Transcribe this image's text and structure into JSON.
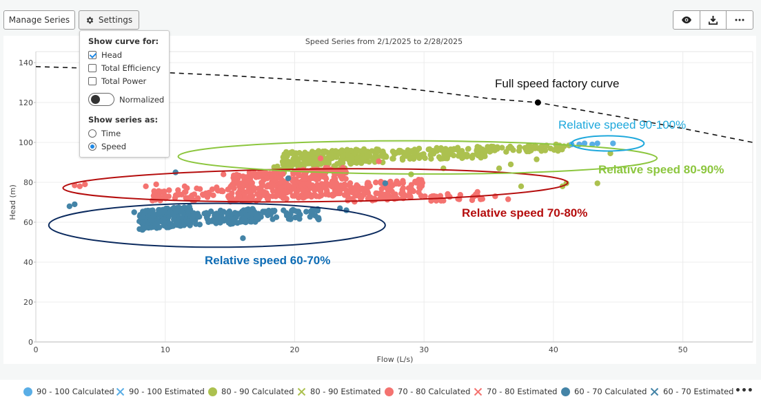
{
  "toolbar": {
    "manage_series_label": "Manage Series",
    "settings_label": "Settings",
    "settings_icon": "gear-icon",
    "right_buttons": [
      {
        "icon": "eye-icon",
        "label": "view"
      },
      {
        "icon": "download-icon",
        "label": "download"
      },
      {
        "icon": "more-icon",
        "label": "more"
      }
    ]
  },
  "settings_dropdown": {
    "curve_heading": "Show curve for:",
    "curve_options": [
      {
        "label": "Head",
        "checked": true
      },
      {
        "label": "Total Efficiency",
        "checked": false
      },
      {
        "label": "Total Power",
        "checked": false
      }
    ],
    "normalized_label": "Normalized",
    "normalized_on": false,
    "series_heading": "Show series as:",
    "series_options": [
      {
        "label": "Time",
        "selected": false
      },
      {
        "label": "Speed",
        "selected": true
      }
    ]
  },
  "annotations": {
    "factory_curve": "Full speed factory curve",
    "speed_90_100": "Relative speed 90-100%",
    "speed_80_90": "Relative speed 80-90%",
    "speed_70_80": "Relative speed 70-80%",
    "speed_60_70": "Relative speed 60-70%"
  },
  "colors": {
    "s90": "#5aaee6",
    "s80": "#acc14f",
    "s70": "#f47370",
    "s60": "#4484a7",
    "ann90": "#1ea8dc",
    "ann80": "#8cc63e",
    "ann70": "#b50d0d",
    "ann60": "#0d6cb5",
    "ellipse60": "#0b2a5e",
    "ellipse70": "#b50d0d",
    "ellipse80": "#8cc63e",
    "ellipse90": "#1ea8dc"
  },
  "chart_data": {
    "type": "scatter",
    "title": "Speed Series from 2/1/2025 to 2/28/2025",
    "xlabel": "Flow (L/s)",
    "ylabel": "Head (m)",
    "xlim": [
      0,
      55.4
    ],
    "ylim": [
      0,
      140
    ],
    "xticks": [
      "0",
      "10",
      "20",
      "30",
      "40",
      "50"
    ],
    "xtick_values": [
      0,
      10,
      20,
      30,
      40,
      50
    ],
    "yticks": [
      "0",
      "20",
      "40",
      "60",
      "80",
      "100",
      "120",
      "140"
    ],
    "ytick_values": [
      0,
      20,
      40,
      60,
      80,
      100,
      120,
      140
    ],
    "grid": true,
    "factory_curve": {
      "name": "Full speed factory curve",
      "x": [
        0,
        5,
        10,
        15,
        20,
        25,
        30,
        35,
        38.8,
        45,
        50,
        55.4
      ],
      "y": [
        138,
        137,
        135,
        133.5,
        131.5,
        129.5,
        126,
        122,
        120,
        113,
        107,
        100
      ],
      "marker_point": {
        "x": 38.8,
        "y": 120
      }
    },
    "series": [
      {
        "name": "90 - 100 Calculated",
        "marker": "dot",
        "points": [
          [
            41.4,
            99
          ],
          [
            42.4,
            99.5
          ],
          [
            43.4,
            99.5
          ],
          [
            44.6,
            99.5
          ],
          [
            42.0,
            99.0
          ],
          [
            43.0,
            99.0
          ]
        ]
      },
      {
        "name": "90 - 100 Estimated",
        "marker": "x",
        "points": []
      },
      {
        "name": "80 - 90 Calculated",
        "marker": "dot",
        "clusters": [
          {
            "x": [
              19,
              27
            ],
            "y": [
              88,
              97
            ],
            "n": 220
          },
          {
            "x": [
              27,
              35
            ],
            "y": [
              91,
              98
            ],
            "n": 120
          },
          {
            "x": [
              35,
              41
            ],
            "y": [
              95,
              99
            ],
            "n": 50
          },
          {
            "x": [
              18,
              24
            ],
            "y": [
              84,
              90
            ],
            "n": 40
          }
        ],
        "points": [
          [
            40.7,
            78
          ],
          [
            41,
            79.5
          ],
          [
            43.4,
            79.5
          ],
          [
            37.5,
            78
          ],
          [
            35.8,
            87
          ],
          [
            36.7,
            89
          ],
          [
            38.7,
            91.5
          ],
          [
            40.2,
            99
          ],
          [
            41.2,
            98.5
          ],
          [
            44.4,
            94.5
          ],
          [
            33,
            94
          ],
          [
            31.5,
            87
          ],
          [
            29,
            84
          ]
        ]
      },
      {
        "name": "80 - 90 Estimated",
        "marker": "x",
        "points": []
      },
      {
        "name": "70 - 80 Calculated",
        "marker": "dot",
        "clusters": [
          {
            "x": [
              15,
              24
            ],
            "y": [
              70,
              88
            ],
            "n": 380
          },
          {
            "x": [
              24,
              30
            ],
            "y": [
              70,
              82
            ],
            "n": 120
          },
          {
            "x": [
              9,
              15
            ],
            "y": [
              70,
              78
            ],
            "n": 60
          },
          {
            "x": [
              30,
              35
            ],
            "y": [
              70,
              76
            ],
            "n": 25
          }
        ],
        "points": [
          [
            3.0,
            78.5
          ],
          [
            3.4,
            78
          ],
          [
            3.8,
            79
          ],
          [
            8.5,
            78
          ],
          [
            9.3,
            79
          ],
          [
            11.5,
            78
          ],
          [
            14.5,
            84
          ],
          [
            34,
            74
          ],
          [
            35.5,
            73
          ],
          [
            36.5,
            71.5
          ],
          [
            26.5,
            90.5
          ],
          [
            22,
            92
          ]
        ]
      },
      {
        "name": "70 - 80 Estimated",
        "marker": "x",
        "points": []
      },
      {
        "name": "60 - 70 Calculated",
        "marker": "dot",
        "clusters": [
          {
            "x": [
              8,
              12
            ],
            "y": [
              56,
              68
            ],
            "n": 200
          },
          {
            "x": [
              12,
              17
            ],
            "y": [
              58,
              67
            ],
            "n": 120
          },
          {
            "x": [
              17,
              22
            ],
            "y": [
              60,
              67
            ],
            "n": 50
          }
        ],
        "points": [
          [
            2.6,
            68
          ],
          [
            3.0,
            69
          ],
          [
            7.6,
            65
          ],
          [
            10.8,
            85
          ],
          [
            16.0,
            52
          ],
          [
            19.5,
            82
          ],
          [
            21.5,
            66
          ],
          [
            23.5,
            67
          ],
          [
            27,
            79.5
          ],
          [
            24,
            66
          ]
        ]
      },
      {
        "name": "60 - 70 Estimated",
        "marker": "x",
        "points": []
      }
    ],
    "ellipses": [
      {
        "label": "Relative speed 60-70%",
        "cx": 14,
        "cy": 58.5,
        "rx": 13,
        "ry": 11
      },
      {
        "label": "Relative speed 70-80%",
        "cx": 21.6,
        "cy": 78.5,
        "rx": 19.5,
        "ry": 8.2
      },
      {
        "label": "Relative speed 80-90%",
        "cx": 29.5,
        "cy": 92.5,
        "rx": 18.5,
        "ry": 8.3
      },
      {
        "label": "Relative speed 90-100%",
        "cx": 44.2,
        "cy": 99.5,
        "rx": 2.8,
        "ry": 3.8
      }
    ]
  },
  "legend": {
    "items": [
      {
        "label": "90 - 100 Calculated",
        "marker": "dot",
        "color": "#5aaee6"
      },
      {
        "label": "90 - 100 Estimated",
        "marker": "x",
        "color": "#5aaee6"
      },
      {
        "label": "80 - 90 Calculated",
        "marker": "dot",
        "color": "#acc14f"
      },
      {
        "label": "80 - 90 Estimated",
        "marker": "x",
        "color": "#acc14f"
      },
      {
        "label": "70 - 80 Calculated",
        "marker": "dot",
        "color": "#f47370"
      },
      {
        "label": "70 - 80 Estimated",
        "marker": "x",
        "color": "#f47370"
      },
      {
        "label": "60 - 70 Calculated",
        "marker": "dot",
        "color": "#4484a7"
      },
      {
        "label": "60 - 70 Estimated",
        "marker": "x",
        "color": "#4484a7"
      }
    ],
    "more_label": "•••"
  }
}
